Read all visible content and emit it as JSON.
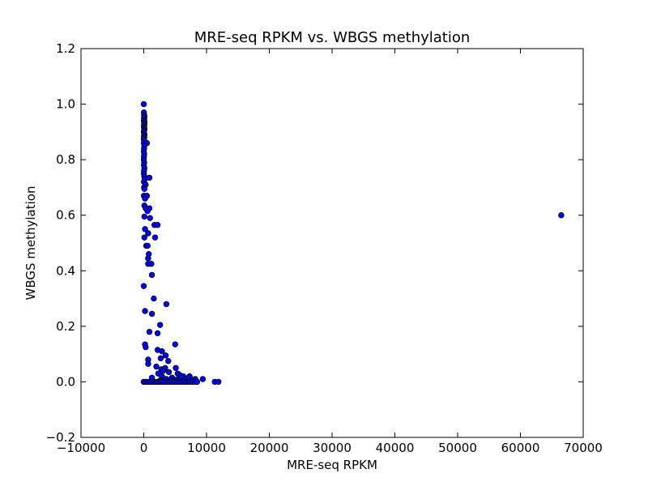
{
  "chart_data": {
    "type": "scatter",
    "title": "MRE-seq RPKM vs. WBGS methylation",
    "xlabel": "MRE-seq RPKM",
    "ylabel": "WBGS methylation",
    "xlim": [
      -10000,
      70000
    ],
    "ylim": [
      -0.2,
      1.2
    ],
    "xticks": [
      -10000,
      0,
      10000,
      20000,
      30000,
      40000,
      50000,
      60000,
      70000
    ],
    "xtick_labels": [
      "−10000",
      "0",
      "10000",
      "20000",
      "30000",
      "40000",
      "50000",
      "60000",
      "70000"
    ],
    "yticks": [
      -0.2,
      0.0,
      0.2,
      0.4,
      0.6,
      0.8,
      1.0,
      1.2
    ],
    "ytick_labels": [
      "−0.2",
      "0.0",
      "0.2",
      "0.4",
      "0.6",
      "0.8",
      "1.0",
      "1.2"
    ],
    "grid": false,
    "marker_color": "#0000ff",
    "marker_edge": "#000000",
    "points": [
      [
        0,
        1.0
      ],
      [
        20,
        0.97
      ],
      [
        60,
        0.96
      ],
      [
        100,
        0.955
      ],
      [
        30,
        0.95
      ],
      [
        80,
        0.945
      ],
      [
        10,
        0.94
      ],
      [
        120,
        0.935
      ],
      [
        50,
        0.93
      ],
      [
        90,
        0.925
      ],
      [
        20,
        0.92
      ],
      [
        70,
        0.915
      ],
      [
        110,
        0.91
      ],
      [
        40,
        0.905
      ],
      [
        5,
        0.9
      ],
      [
        60,
        0.895
      ],
      [
        100,
        0.89
      ],
      [
        30,
        0.885
      ],
      [
        80,
        0.88
      ],
      [
        10,
        0.875
      ],
      [
        50,
        0.87
      ],
      [
        20,
        0.86
      ],
      [
        500,
        0.86
      ],
      [
        90,
        0.85
      ],
      [
        40,
        0.84
      ],
      [
        10,
        0.83
      ],
      [
        70,
        0.82
      ],
      [
        30,
        0.81
      ],
      [
        5,
        0.8
      ],
      [
        60,
        0.79
      ],
      [
        20,
        0.78
      ],
      [
        100,
        0.77
      ],
      [
        40,
        0.76
      ],
      [
        10,
        0.75
      ],
      [
        80,
        0.74
      ],
      [
        150,
        0.73
      ],
      [
        900,
        0.735
      ],
      [
        30,
        0.72
      ],
      [
        300,
        0.71
      ],
      [
        50,
        0.7
      ],
      [
        100,
        0.695
      ],
      [
        20,
        0.67
      ],
      [
        500,
        0.67
      ],
      [
        200,
        0.66
      ],
      [
        100,
        0.635
      ],
      [
        300,
        0.625
      ],
      [
        900,
        0.625
      ],
      [
        600,
        0.615
      ],
      [
        100,
        0.595
      ],
      [
        1000,
        0.59
      ],
      [
        1700,
        0.565
      ],
      [
        2200,
        0.565
      ],
      [
        200,
        0.55
      ],
      [
        700,
        0.535
      ],
      [
        100,
        0.52
      ],
      [
        1800,
        0.52
      ],
      [
        400,
        0.49
      ],
      [
        600,
        0.49
      ],
      [
        800,
        0.46
      ],
      [
        700,
        0.445
      ],
      [
        700,
        0.425
      ],
      [
        1200,
        0.425
      ],
      [
        1300,
        0.385
      ],
      [
        0,
        0.345
      ],
      [
        1600,
        0.3
      ],
      [
        3600,
        0.28
      ],
      [
        200,
        0.255
      ],
      [
        1300,
        0.245
      ],
      [
        2600,
        0.205
      ],
      [
        900,
        0.18
      ],
      [
        2200,
        0.175
      ],
      [
        5000,
        0.135
      ],
      [
        200,
        0.135
      ],
      [
        300,
        0.125
      ],
      [
        2200,
        0.115
      ],
      [
        2900,
        0.11
      ],
      [
        3500,
        0.095
      ],
      [
        2700,
        0.085
      ],
      [
        700,
        0.08
      ],
      [
        3900,
        0.075
      ],
      [
        700,
        0.065
      ],
      [
        2000,
        0.055
      ],
      [
        3400,
        0.05
      ],
      [
        2800,
        0.045
      ],
      [
        5100,
        0.05
      ],
      [
        3100,
        0.04
      ],
      [
        4000,
        0.035
      ],
      [
        2300,
        0.03
      ],
      [
        5400,
        0.03
      ],
      [
        5700,
        0.025
      ],
      [
        2900,
        0.02
      ],
      [
        5900,
        0.02
      ],
      [
        6300,
        0.02
      ],
      [
        7300,
        0.02
      ],
      [
        4500,
        0.015
      ],
      [
        6000,
        0.015
      ],
      [
        7100,
        0.015
      ],
      [
        8200,
        0.01
      ],
      [
        9400,
        0.01
      ],
      [
        1300,
        0.015
      ],
      [
        3600,
        0.01
      ],
      [
        4300,
        0.008
      ],
      [
        5200,
        0.008
      ],
      [
        6600,
        0.008
      ],
      [
        7700,
        0.006
      ],
      [
        2600,
        0.005
      ],
      [
        0,
        0.0
      ],
      [
        300,
        0.0
      ],
      [
        600,
        0.0
      ],
      [
        900,
        0.0
      ],
      [
        1200,
        0.0
      ],
      [
        1500,
        0.0
      ],
      [
        1800,
        0.0
      ],
      [
        2100,
        0.0
      ],
      [
        2400,
        0.0
      ],
      [
        2700,
        0.0
      ],
      [
        3000,
        0.0
      ],
      [
        3300,
        0.0
      ],
      [
        3700,
        0.0
      ],
      [
        4100,
        0.0
      ],
      [
        4500,
        0.0
      ],
      [
        4900,
        0.0
      ],
      [
        5300,
        0.0
      ],
      [
        5700,
        0.0
      ],
      [
        6100,
        0.0
      ],
      [
        6500,
        0.0
      ],
      [
        6900,
        0.0
      ],
      [
        7300,
        0.0
      ],
      [
        7700,
        0.0
      ],
      [
        8100,
        0.0
      ],
      [
        8500,
        0.0
      ],
      [
        11300,
        0.0
      ],
      [
        11900,
        0.0
      ],
      [
        66500,
        0.6
      ]
    ]
  }
}
